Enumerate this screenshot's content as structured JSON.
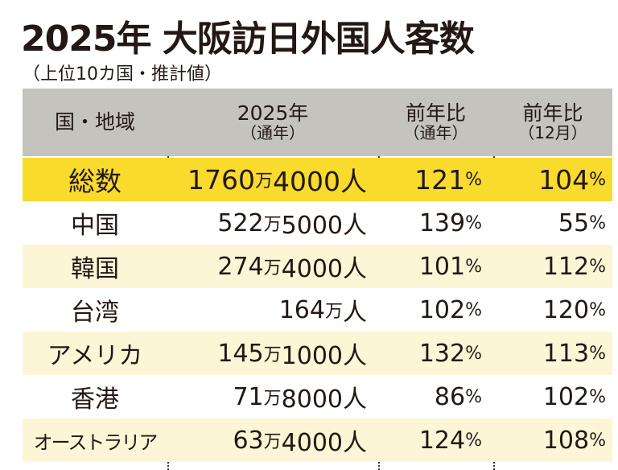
{
  "title": "2025年 大阪訪日外国人客数",
  "subtitle": "（上位10カ国・推計値）",
  "header": {
    "col0": "国・地域",
    "col1": "2025年",
    "col1_sub": "（通年）",
    "col2": "前年比",
    "col2_sub": "（通年）",
    "col3": "前年比",
    "col3_sub": "（12月）"
  },
  "total": {
    "name": "総数",
    "man": "1760",
    "rest": "4000人",
    "yoy": "121",
    "dec": "104"
  },
  "rows": [
    {
      "name": "中国",
      "man": "522",
      "rest": "5000人",
      "yoy": "139",
      "dec": "55"
    },
    {
      "name": "韓国",
      "man": "274",
      "rest": "4000人",
      "yoy": "101",
      "dec": "112"
    },
    {
      "name": "台湾",
      "man": "164",
      "rest": "人",
      "yoy": "102",
      "dec": "120"
    },
    {
      "name": "アメリカ",
      "man": "145",
      "rest": "1000人",
      "yoy": "132",
      "dec": "113"
    },
    {
      "name": "香港",
      "man": "71",
      "rest": "8000人",
      "yoy": "86",
      "dec": "102"
    },
    {
      "name": "オーストラリア",
      "man": "63",
      "rest": "4000人",
      "yoy": "124",
      "dec": "108"
    }
  ],
  "units": {
    "man": "万",
    "pct": "%"
  },
  "colors": {
    "header": "#c5c3be",
    "total": "#f8db2c",
    "cream": "#fdf6d6"
  }
}
